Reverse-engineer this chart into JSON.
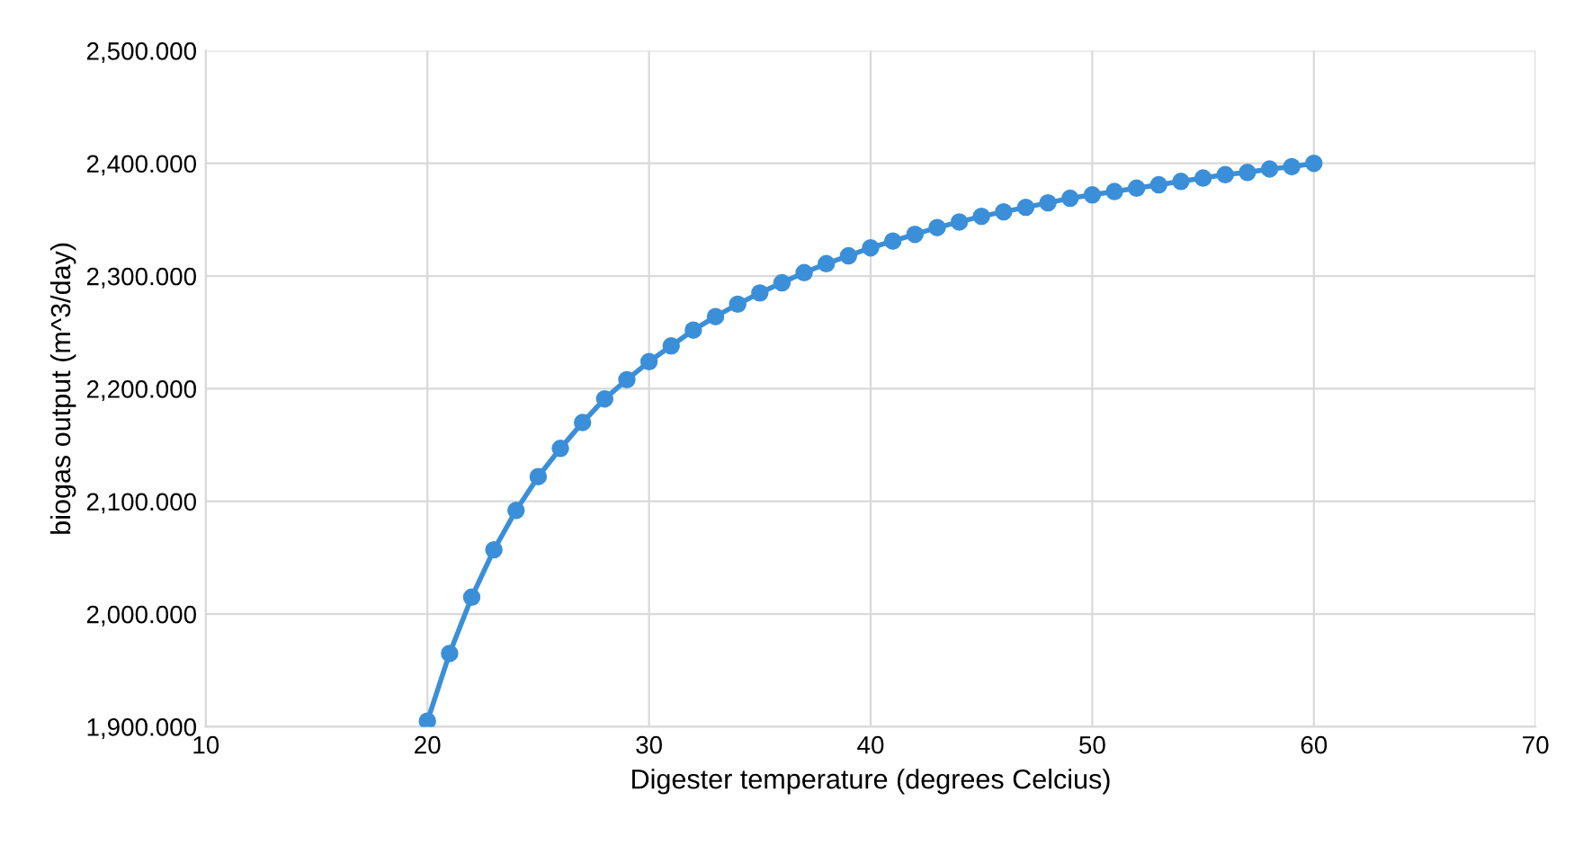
{
  "chart_data": {
    "type": "line",
    "xlabel": "Digester temperature (degrees Celcius)",
    "ylabel": "biogas output (m^3/day)",
    "x": [
      20,
      21,
      22,
      23,
      24,
      25,
      26,
      27,
      28,
      29,
      30,
      31,
      32,
      33,
      34,
      35,
      36,
      37,
      38,
      39,
      40,
      41,
      42,
      43,
      44,
      45,
      46,
      47,
      48,
      49,
      50,
      51,
      52,
      53,
      54,
      55,
      56,
      57,
      58,
      59,
      60
    ],
    "series": [
      {
        "color": "#3b8fd9",
        "values": [
          1905,
          1965,
          2015,
          2057,
          2092,
          2122,
          2147,
          2170,
          2191,
          2208,
          2224,
          2238,
          2252,
          2264,
          2275,
          2285,
          2294,
          2303,
          2311,
          2318,
          2325,
          2331,
          2337,
          2343,
          2348,
          2353,
          2357,
          2361,
          2365,
          2369,
          2372,
          2375,
          2378,
          2381,
          2384,
          2387,
          2390,
          2392,
          2395,
          2397,
          2400
        ]
      }
    ],
    "xlim": [
      10,
      70
    ],
    "xticks": [
      10,
      20,
      30,
      40,
      50,
      60,
      70
    ],
    "ylim": [
      1900,
      2500
    ],
    "yticks": [
      {
        "value": 1900,
        "label": "1,900.000"
      },
      {
        "value": 2000,
        "label": "2,000.000"
      },
      {
        "value": 2100,
        "label": "2,100.000"
      },
      {
        "value": 2200,
        "label": "2,200.000"
      },
      {
        "value": 2300,
        "label": "2,300.000"
      },
      {
        "value": 2400,
        "label": "2,400.000"
      },
      {
        "value": 2500,
        "label": "2,500.000"
      }
    ],
    "grid": true,
    "marker": "circle",
    "line_style": "solid"
  }
}
